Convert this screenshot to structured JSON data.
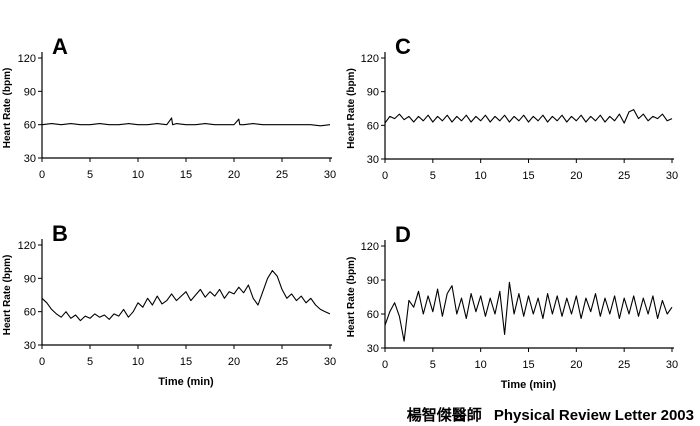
{
  "credit": {
    "name": "楊智傑醫師",
    "source": "Physical Review Letter 2003"
  },
  "chart_data": [
    {
      "type": "line",
      "panel_label": "A",
      "ylabel": "Heart Rate (bpm)",
      "xlabel": "",
      "xlim": [
        0,
        30
      ],
      "ylim": [
        30,
        120
      ],
      "xticks": [
        0,
        5,
        10,
        15,
        20,
        25,
        30
      ],
      "yticks": [
        30,
        60,
        90,
        120
      ],
      "series": [
        {
          "values": [
            {
              "x": 0.0,
              "y": 60
            },
            {
              "x": 1.0,
              "y": 61
            },
            {
              "x": 2.0,
              "y": 60
            },
            {
              "x": 3.0,
              "y": 61
            },
            {
              "x": 4.0,
              "y": 60
            },
            {
              "x": 5.0,
              "y": 60
            },
            {
              "x": 6.0,
              "y": 61
            },
            {
              "x": 7.0,
              "y": 60
            },
            {
              "x": 8.0,
              "y": 60
            },
            {
              "x": 9.0,
              "y": 61
            },
            {
              "x": 10.0,
              "y": 60
            },
            {
              "x": 11.0,
              "y": 60
            },
            {
              "x": 12.0,
              "y": 61
            },
            {
              "x": 13.0,
              "y": 60
            },
            {
              "x": 13.5,
              "y": 66
            },
            {
              "x": 13.6,
              "y": 60
            },
            {
              "x": 14.0,
              "y": 61
            },
            {
              "x": 15.0,
              "y": 60
            },
            {
              "x": 16.0,
              "y": 60
            },
            {
              "x": 17.0,
              "y": 61
            },
            {
              "x": 18.0,
              "y": 60
            },
            {
              "x": 19.0,
              "y": 60
            },
            {
              "x": 20.0,
              "y": 60
            },
            {
              "x": 20.5,
              "y": 65
            },
            {
              "x": 20.6,
              "y": 60
            },
            {
              "x": 21.0,
              "y": 60
            },
            {
              "x": 22.0,
              "y": 61
            },
            {
              "x": 23.0,
              "y": 60
            },
            {
              "x": 24.0,
              "y": 60
            },
            {
              "x": 25.0,
              "y": 60
            },
            {
              "x": 26.0,
              "y": 60
            },
            {
              "x": 27.0,
              "y": 60
            },
            {
              "x": 28.0,
              "y": 60
            },
            {
              "x": 29.0,
              "y": 59
            },
            {
              "x": 30.0,
              "y": 60
            }
          ]
        }
      ]
    },
    {
      "type": "line",
      "panel_label": "B",
      "ylabel": "Heart Rate (bpm)",
      "xlabel": "Time (min)",
      "xlim": [
        0,
        30
      ],
      "ylim": [
        30,
        120
      ],
      "xticks": [
        0,
        5,
        10,
        15,
        20,
        25,
        30
      ],
      "yticks": [
        30,
        60,
        90,
        120
      ],
      "series": [
        {
          "values": [
            {
              "x": 0.0,
              "y": 72
            },
            {
              "x": 0.5,
              "y": 68
            },
            {
              "x": 1.0,
              "y": 62
            },
            {
              "x": 1.5,
              "y": 58
            },
            {
              "x": 2.0,
              "y": 55
            },
            {
              "x": 2.5,
              "y": 60
            },
            {
              "x": 3.0,
              "y": 54
            },
            {
              "x": 3.5,
              "y": 57
            },
            {
              "x": 4.0,
              "y": 52
            },
            {
              "x": 4.5,
              "y": 56
            },
            {
              "x": 5.0,
              "y": 54
            },
            {
              "x": 5.5,
              "y": 58
            },
            {
              "x": 6.0,
              "y": 55
            },
            {
              "x": 6.5,
              "y": 57
            },
            {
              "x": 7.0,
              "y": 53
            },
            {
              "x": 7.5,
              "y": 58
            },
            {
              "x": 8.0,
              "y": 56
            },
            {
              "x": 8.5,
              "y": 62
            },
            {
              "x": 9.0,
              "y": 55
            },
            {
              "x": 9.5,
              "y": 60
            },
            {
              "x": 10.0,
              "y": 68
            },
            {
              "x": 10.5,
              "y": 64
            },
            {
              "x": 11.0,
              "y": 72
            },
            {
              "x": 11.5,
              "y": 66
            },
            {
              "x": 12.0,
              "y": 74
            },
            {
              "x": 12.5,
              "y": 67
            },
            {
              "x": 13.0,
              "y": 70
            },
            {
              "x": 13.5,
              "y": 76
            },
            {
              "x": 14.0,
              "y": 70
            },
            {
              "x": 14.5,
              "y": 74
            },
            {
              "x": 15.0,
              "y": 78
            },
            {
              "x": 15.5,
              "y": 70
            },
            {
              "x": 16.0,
              "y": 75
            },
            {
              "x": 16.5,
              "y": 80
            },
            {
              "x": 17.0,
              "y": 73
            },
            {
              "x": 17.5,
              "y": 78
            },
            {
              "x": 18.0,
              "y": 74
            },
            {
              "x": 18.5,
              "y": 80
            },
            {
              "x": 19.0,
              "y": 72
            },
            {
              "x": 19.5,
              "y": 78
            },
            {
              "x": 20.0,
              "y": 76
            },
            {
              "x": 20.5,
              "y": 82
            },
            {
              "x": 21.0,
              "y": 77
            },
            {
              "x": 21.5,
              "y": 84
            },
            {
              "x": 22.0,
              "y": 72
            },
            {
              "x": 22.5,
              "y": 66
            },
            {
              "x": 23.0,
              "y": 78
            },
            {
              "x": 23.5,
              "y": 90
            },
            {
              "x": 24.0,
              "y": 97
            },
            {
              "x": 24.5,
              "y": 92
            },
            {
              "x": 25.0,
              "y": 80
            },
            {
              "x": 25.5,
              "y": 72
            },
            {
              "x": 26.0,
              "y": 76
            },
            {
              "x": 26.5,
              "y": 70
            },
            {
              "x": 27.0,
              "y": 74
            },
            {
              "x": 27.5,
              "y": 68
            },
            {
              "x": 28.0,
              "y": 72
            },
            {
              "x": 28.5,
              "y": 66
            },
            {
              "x": 29.0,
              "y": 62
            },
            {
              "x": 29.5,
              "y": 60
            },
            {
              "x": 30.0,
              "y": 58
            }
          ]
        }
      ]
    },
    {
      "type": "line",
      "panel_label": "C",
      "ylabel": "Heart Rate (bpm)",
      "xlabel": "",
      "xlim": [
        0,
        30
      ],
      "ylim": [
        30,
        120
      ],
      "xticks": [
        0,
        5,
        10,
        15,
        20,
        25,
        30
      ],
      "yticks": [
        30,
        60,
        90,
        120
      ],
      "series": [
        {
          "values": [
            {
              "x": 0.0,
              "y": 62
            },
            {
              "x": 0.5,
              "y": 68
            },
            {
              "x": 1.0,
              "y": 66
            },
            {
              "x": 1.5,
              "y": 70
            },
            {
              "x": 2.0,
              "y": 65
            },
            {
              "x": 2.5,
              "y": 68
            },
            {
              "x": 3.0,
              "y": 63
            },
            {
              "x": 3.5,
              "y": 68
            },
            {
              "x": 4.0,
              "y": 64
            },
            {
              "x": 4.5,
              "y": 69
            },
            {
              "x": 5.0,
              "y": 63
            },
            {
              "x": 5.5,
              "y": 68
            },
            {
              "x": 6.0,
              "y": 64
            },
            {
              "x": 6.5,
              "y": 69
            },
            {
              "x": 7.0,
              "y": 63
            },
            {
              "x": 7.5,
              "y": 68
            },
            {
              "x": 8.0,
              "y": 64
            },
            {
              "x": 8.5,
              "y": 69
            },
            {
              "x": 9.0,
              "y": 63
            },
            {
              "x": 9.5,
              "y": 68
            },
            {
              "x": 10.0,
              "y": 64
            },
            {
              "x": 10.5,
              "y": 69
            },
            {
              "x": 11.0,
              "y": 63
            },
            {
              "x": 11.5,
              "y": 68
            },
            {
              "x": 12.0,
              "y": 64
            },
            {
              "x": 12.5,
              "y": 69
            },
            {
              "x": 13.0,
              "y": 63
            },
            {
              "x": 13.5,
              "y": 68
            },
            {
              "x": 14.0,
              "y": 64
            },
            {
              "x": 14.5,
              "y": 69
            },
            {
              "x": 15.0,
              "y": 63
            },
            {
              "x": 15.5,
              "y": 68
            },
            {
              "x": 16.0,
              "y": 64
            },
            {
              "x": 16.5,
              "y": 69
            },
            {
              "x": 17.0,
              "y": 63
            },
            {
              "x": 17.5,
              "y": 68
            },
            {
              "x": 18.0,
              "y": 64
            },
            {
              "x": 18.5,
              "y": 69
            },
            {
              "x": 19.0,
              "y": 63
            },
            {
              "x": 19.5,
              "y": 68
            },
            {
              "x": 20.0,
              "y": 64
            },
            {
              "x": 20.5,
              "y": 69
            },
            {
              "x": 21.0,
              "y": 63
            },
            {
              "x": 21.5,
              "y": 68
            },
            {
              "x": 22.0,
              "y": 64
            },
            {
              "x": 22.5,
              "y": 69
            },
            {
              "x": 23.0,
              "y": 63
            },
            {
              "x": 23.5,
              "y": 68
            },
            {
              "x": 24.0,
              "y": 64
            },
            {
              "x": 24.5,
              "y": 70
            },
            {
              "x": 25.0,
              "y": 62
            },
            {
              "x": 25.5,
              "y": 72
            },
            {
              "x": 26.0,
              "y": 74
            },
            {
              "x": 26.5,
              "y": 66
            },
            {
              "x": 27.0,
              "y": 70
            },
            {
              "x": 27.5,
              "y": 64
            },
            {
              "x": 28.0,
              "y": 68
            },
            {
              "x": 28.5,
              "y": 66
            },
            {
              "x": 29.0,
              "y": 70
            },
            {
              "x": 29.5,
              "y": 64
            },
            {
              "x": 30.0,
              "y": 66
            }
          ]
        }
      ]
    },
    {
      "type": "line",
      "panel_label": "D",
      "ylabel": "Heart Rate (bpm)",
      "xlabel": "Time (min)",
      "xlim": [
        0,
        30
      ],
      "ylim": [
        30,
        120
      ],
      "xticks": [
        0,
        5,
        10,
        15,
        20,
        25,
        30
      ],
      "yticks": [
        30,
        60,
        90,
        120
      ],
      "series": [
        {
          "values": [
            {
              "x": 0.0,
              "y": 50
            },
            {
              "x": 0.5,
              "y": 62
            },
            {
              "x": 1.0,
              "y": 70
            },
            {
              "x": 1.5,
              "y": 58
            },
            {
              "x": 2.0,
              "y": 36
            },
            {
              "x": 2.5,
              "y": 72
            },
            {
              "x": 3.0,
              "y": 66
            },
            {
              "x": 3.5,
              "y": 80
            },
            {
              "x": 4.0,
              "y": 60
            },
            {
              "x": 4.5,
              "y": 76
            },
            {
              "x": 5.0,
              "y": 62
            },
            {
              "x": 5.5,
              "y": 82
            },
            {
              "x": 6.0,
              "y": 58
            },
            {
              "x": 6.5,
              "y": 78
            },
            {
              "x": 7.0,
              "y": 85
            },
            {
              "x": 7.5,
              "y": 60
            },
            {
              "x": 8.0,
              "y": 74
            },
            {
              "x": 8.5,
              "y": 56
            },
            {
              "x": 9.0,
              "y": 78
            },
            {
              "x": 9.5,
              "y": 62
            },
            {
              "x": 10.0,
              "y": 76
            },
            {
              "x": 10.5,
              "y": 58
            },
            {
              "x": 11.0,
              "y": 74
            },
            {
              "x": 11.5,
              "y": 60
            },
            {
              "x": 12.0,
              "y": 80
            },
            {
              "x": 12.5,
              "y": 42
            },
            {
              "x": 13.0,
              "y": 88
            },
            {
              "x": 13.5,
              "y": 60
            },
            {
              "x": 14.0,
              "y": 78
            },
            {
              "x": 14.5,
              "y": 58
            },
            {
              "x": 15.0,
              "y": 76
            },
            {
              "x": 15.5,
              "y": 60
            },
            {
              "x": 16.0,
              "y": 74
            },
            {
              "x": 16.5,
              "y": 56
            },
            {
              "x": 17.0,
              "y": 78
            },
            {
              "x": 17.5,
              "y": 60
            },
            {
              "x": 18.0,
              "y": 76
            },
            {
              "x": 18.5,
              "y": 58
            },
            {
              "x": 19.0,
              "y": 74
            },
            {
              "x": 19.5,
              "y": 60
            },
            {
              "x": 20.0,
              "y": 76
            },
            {
              "x": 20.5,
              "y": 56
            },
            {
              "x": 21.0,
              "y": 74
            },
            {
              "x": 21.5,
              "y": 62
            },
            {
              "x": 22.0,
              "y": 78
            },
            {
              "x": 22.5,
              "y": 58
            },
            {
              "x": 23.0,
              "y": 74
            },
            {
              "x": 23.5,
              "y": 60
            },
            {
              "x": 24.0,
              "y": 76
            },
            {
              "x": 24.5,
              "y": 56
            },
            {
              "x": 25.0,
              "y": 74
            },
            {
              "x": 25.5,
              "y": 60
            },
            {
              "x": 26.0,
              "y": 76
            },
            {
              "x": 26.5,
              "y": 58
            },
            {
              "x": 27.0,
              "y": 74
            },
            {
              "x": 27.5,
              "y": 60
            },
            {
              "x": 28.0,
              "y": 76
            },
            {
              "x": 28.5,
              "y": 56
            },
            {
              "x": 29.0,
              "y": 72
            },
            {
              "x": 29.5,
              "y": 60
            },
            {
              "x": 30.0,
              "y": 66
            }
          ]
        }
      ]
    }
  ]
}
